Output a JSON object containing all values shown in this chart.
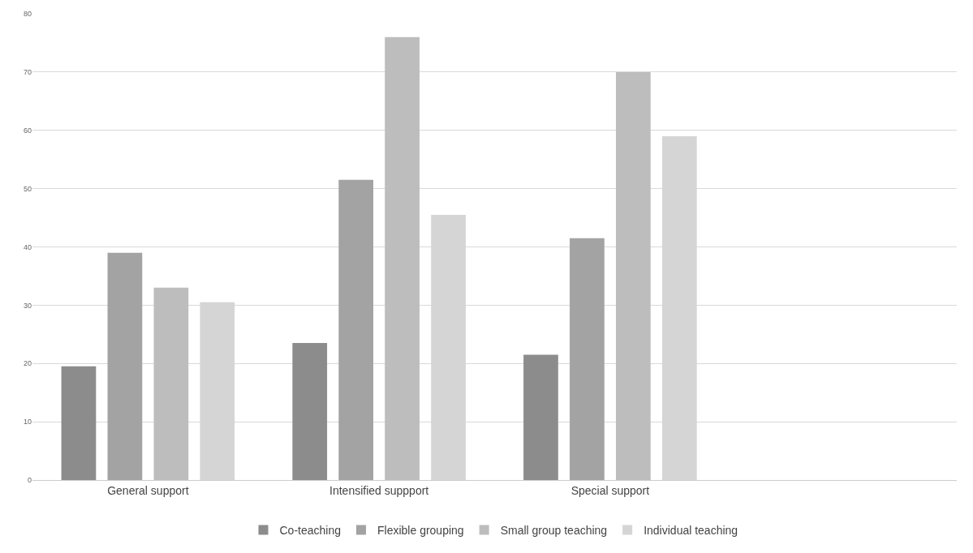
{
  "chart_data": {
    "type": "bar",
    "categories": [
      "General support",
      "Intensified suppport",
      "Special support",
      null
    ],
    "series": [
      {
        "name": "Co-teaching",
        "color": "#8c8c8c",
        "values": [
          19.5,
          23.5,
          21.5,
          null
        ]
      },
      {
        "name": "Flexible grouping",
        "color": "#a3a3a3",
        "values": [
          39,
          51.5,
          41.5,
          null
        ]
      },
      {
        "name": "Small group teaching",
        "color": "#bdbdbd",
        "values": [
          33,
          76,
          70,
          null
        ]
      },
      {
        "name": "Individual teaching",
        "color": "#d5d5d5",
        "values": [
          30.5,
          45.5,
          59,
          null
        ]
      }
    ],
    "ylim": [
      0,
      80
    ],
    "yticks": [
      0,
      10,
      20,
      30,
      40,
      50,
      60,
      70,
      80
    ],
    "grid": "y",
    "legend": "bottom"
  }
}
